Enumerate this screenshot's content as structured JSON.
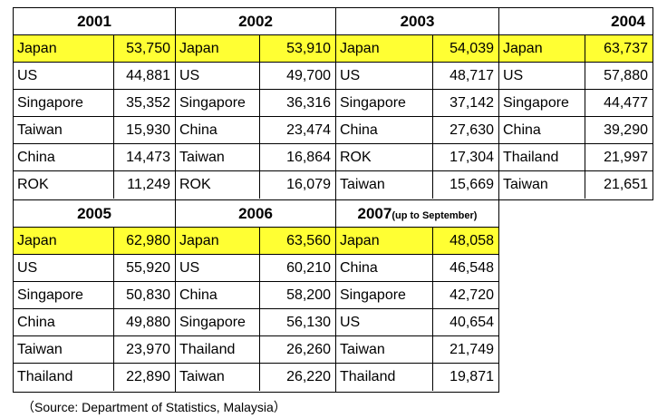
{
  "blocks": [
    {
      "year": "2001",
      "note": "",
      "rows": [
        {
          "country": "Japan",
          "value": "53,750"
        },
        {
          "country": "US",
          "value": "44,881"
        },
        {
          "country": "Singapore",
          "value": "35,352"
        },
        {
          "country": "Taiwan",
          "value": "15,930"
        },
        {
          "country": "China",
          "value": "14,473"
        },
        {
          "country": "ROK",
          "value": "11,249"
        }
      ]
    },
    {
      "year": "2002",
      "note": "",
      "rows": [
        {
          "country": "Japan",
          "value": "53,910"
        },
        {
          "country": "US",
          "value": "49,700"
        },
        {
          "country": "Singapore",
          "value": "36,316"
        },
        {
          "country": "China",
          "value": "23,474"
        },
        {
          "country": "Taiwan",
          "value": "16,864"
        },
        {
          "country": "ROK",
          "value": "16,079"
        }
      ]
    },
    {
      "year": "2003",
      "note": "",
      "rows": [
        {
          "country": "Japan",
          "value": "54,039"
        },
        {
          "country": "US",
          "value": "48,717"
        },
        {
          "country": "Singapore",
          "value": "37,142"
        },
        {
          "country": "China",
          "value": "27,630"
        },
        {
          "country": "ROK",
          "value": "17,304"
        },
        {
          "country": "Taiwan",
          "value": "15,669"
        }
      ]
    },
    {
      "year": "2004",
      "note": "",
      "rows": [
        {
          "country": "Japan",
          "value": "63,737"
        },
        {
          "country": "US",
          "value": "57,880"
        },
        {
          "country": "Singapore",
          "value": "44,477"
        },
        {
          "country": "China",
          "value": "39,290"
        },
        {
          "country": "Thailand",
          "value": "21,997"
        },
        {
          "country": "Taiwan",
          "value": "21,651"
        }
      ]
    },
    {
      "year": "2005",
      "note": "",
      "rows": [
        {
          "country": "Japan",
          "value": "62,980"
        },
        {
          "country": "US",
          "value": "55,920"
        },
        {
          "country": "Singapore",
          "value": "50,830"
        },
        {
          "country": "China",
          "value": "49,880"
        },
        {
          "country": "Taiwan",
          "value": "23,970"
        },
        {
          "country": "Thailand",
          "value": "22,890"
        }
      ]
    },
    {
      "year": "2006",
      "note": "",
      "rows": [
        {
          "country": "Japan",
          "value": "63,560"
        },
        {
          "country": "US",
          "value": "60,210"
        },
        {
          "country": "China",
          "value": "58,200"
        },
        {
          "country": "Singapore",
          "value": "56,130"
        },
        {
          "country": "Thailand",
          "value": "26,260"
        },
        {
          "country": "Taiwan",
          "value": "26,220"
        }
      ]
    },
    {
      "year": "2007",
      "note": "(up to September)",
      "rows": [
        {
          "country": "Japan",
          "value": "48,058"
        },
        {
          "country": "China",
          "value": "46,548"
        },
        {
          "country": "Singapore",
          "value": "42,720"
        },
        {
          "country": "US",
          "value": "40,654"
        },
        {
          "country": "Taiwan",
          "value": "21,749"
        },
        {
          "country": "Thailand",
          "value": "19,871"
        }
      ]
    }
  ],
  "source": "（Source: Department of Statistics, Malaysia）",
  "colors": {
    "highlight": "#ffff33",
    "border": "#000000"
  }
}
